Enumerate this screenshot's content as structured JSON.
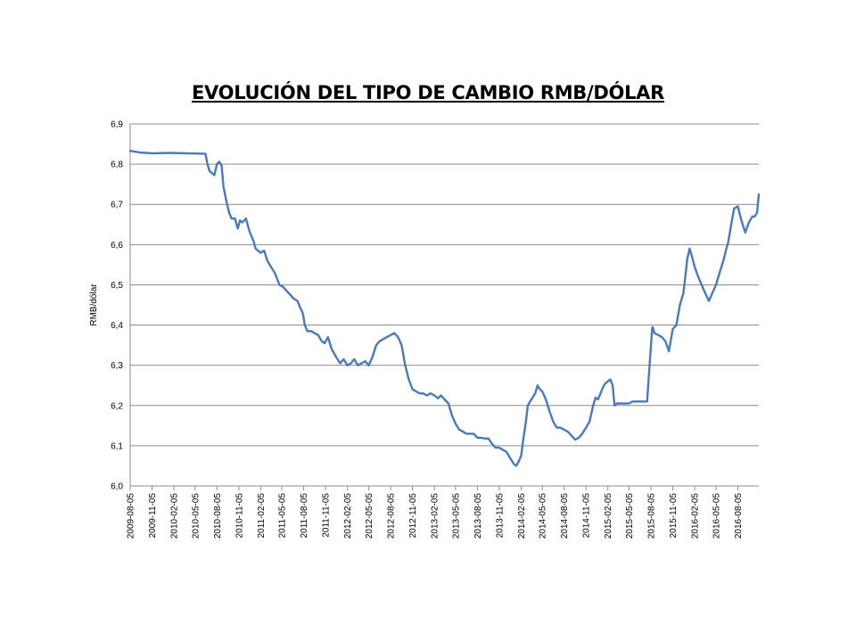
{
  "chart_data": {
    "type": "line",
    "title": "EVOLUCIÓN DEL TIPO DE CAMBIO RMB/DÓLAR",
    "xlabel": "",
    "ylabel": "RMB/dólar",
    "ylim": [
      6.0,
      6.9
    ],
    "yticks": [
      "6,0",
      "6,1",
      "6,2",
      "6,3",
      "6,4",
      "6,5",
      "6,6",
      "6,7",
      "6,8",
      "6,9"
    ],
    "xticks": [
      "2009-08-05",
      "2009-11-05",
      "2010-02-05",
      "2010-05-05",
      "2010-08-05",
      "2010-11-05",
      "2011-02-05",
      "2011-05-05",
      "2011-08-05",
      "2011-11-05",
      "2012-02-05",
      "2012-05-05",
      "2012-08-05",
      "2012-11-05",
      "2013-02-05",
      "2013-05-05",
      "2013-08-05",
      "2013-11-05",
      "2014-02-05",
      "2014-05-05",
      "2014-08-05",
      "2014-11-05",
      "2015-02-05",
      "2015-05-05",
      "2015-08-05",
      "2015-11-05",
      "2016-02-05",
      "2016-05-05",
      "2016-08-05"
    ],
    "grid": true,
    "legend": "none",
    "color": "#4a7ab8",
    "series": [
      {
        "x": [
          "2009-08-05",
          "2009-09-15",
          "2009-11-05",
          "2010-01-15",
          "2010-04-01",
          "2010-06-18",
          "2010-06-25",
          "2010-07-05",
          "2010-07-20",
          "2010-07-25",
          "2010-08-05",
          "2010-08-15",
          "2010-08-25",
          "2010-09-01",
          "2010-09-15",
          "2010-09-25",
          "2010-10-05",
          "2010-10-20",
          "2010-11-01",
          "2010-11-10",
          "2010-11-20",
          "2010-12-05",
          "2010-12-20",
          "2011-01-05",
          "2011-01-15",
          "2011-01-25",
          "2011-02-05",
          "2011-02-20",
          "2011-03-05",
          "2011-03-20",
          "2011-04-05",
          "2011-04-25",
          "2011-05-10",
          "2011-05-25",
          "2011-06-10",
          "2011-06-25",
          "2011-07-10",
          "2011-07-20",
          "2011-08-01",
          "2011-08-10",
          "2011-08-20",
          "2011-09-05",
          "2011-09-20",
          "2011-10-05",
          "2011-10-20",
          "2011-11-01",
          "2011-11-15",
          "2011-12-01",
          "2011-12-20",
          "2012-01-05",
          "2012-01-20",
          "2012-02-05",
          "2012-02-20",
          "2012-03-05",
          "2012-03-20",
          "2012-04-05",
          "2012-04-20",
          "2012-05-05",
          "2012-05-20",
          "2012-06-05",
          "2012-06-20",
          "2012-07-05",
          "2012-07-20",
          "2012-08-05",
          "2012-08-20",
          "2012-09-05",
          "2012-09-20",
          "2012-10-05",
          "2012-10-20",
          "2012-11-05",
          "2012-11-20",
          "2012-12-05",
          "2012-12-20",
          "2013-01-05",
          "2013-01-20",
          "2013-02-05",
          "2013-02-20",
          "2013-03-05",
          "2013-03-20",
          "2013-04-05",
          "2013-04-20",
          "2013-05-05",
          "2013-05-20",
          "2013-06-05",
          "2013-06-20",
          "2013-07-05",
          "2013-07-20",
          "2013-08-05",
          "2013-08-20",
          "2013-09-05",
          "2013-09-20",
          "2013-10-05",
          "2013-10-20",
          "2013-11-05",
          "2013-11-20",
          "2013-12-05",
          "2013-12-20",
          "2014-01-05",
          "2014-01-15",
          "2014-01-25",
          "2014-02-05",
          "2014-02-15",
          "2014-02-25",
          "2014-03-05",
          "2014-03-15",
          "2014-03-25",
          "2014-04-05",
          "2014-04-15",
          "2014-04-25",
          "2014-05-05",
          "2014-05-20",
          "2014-06-05",
          "2014-06-20",
          "2014-07-05",
          "2014-07-20",
          "2014-08-05",
          "2014-08-20",
          "2014-09-05",
          "2014-09-20",
          "2014-10-05",
          "2014-10-20",
          "2014-11-05",
          "2014-11-20",
          "2014-12-05",
          "2014-12-15",
          "2014-12-25",
          "2015-01-05",
          "2015-01-15",
          "2015-01-25",
          "2015-02-05",
          "2015-02-15",
          "2015-02-25",
          "2015-03-05",
          "2015-03-15",
          "2015-03-25",
          "2015-04-05",
          "2015-04-20",
          "2015-05-05",
          "2015-05-20",
          "2015-06-05",
          "2015-06-20",
          "2015-07-05",
          "2015-07-20",
          "2015-08-10",
          "2015-08-12",
          "2015-08-20",
          "2015-09-05",
          "2015-09-20",
          "2015-10-05",
          "2015-10-20",
          "2015-11-05",
          "2015-11-20",
          "2015-12-05",
          "2015-12-20",
          "2016-01-05",
          "2016-01-15",
          "2016-01-25",
          "2016-02-05",
          "2016-02-20",
          "2016-03-05",
          "2016-03-20",
          "2016-04-05",
          "2016-04-20",
          "2016-05-05",
          "2016-05-20",
          "2016-06-05",
          "2016-06-15",
          "2016-06-25",
          "2016-07-05",
          "2016-07-20",
          "2016-08-05",
          "2016-08-20",
          "2016-09-05",
          "2016-09-20",
          "2016-10-05",
          "2016-10-15",
          "2016-10-25",
          "2016-11-01"
        ],
        "y": [
          6.833,
          6.829,
          6.827,
          6.828,
          6.827,
          6.826,
          6.802,
          6.783,
          6.775,
          6.773,
          6.8,
          6.806,
          6.796,
          6.745,
          6.705,
          6.68,
          6.665,
          6.665,
          6.64,
          6.66,
          6.655,
          6.665,
          6.633,
          6.61,
          6.59,
          6.585,
          6.58,
          6.585,
          6.56,
          6.545,
          6.53,
          6.5,
          6.495,
          6.485,
          6.475,
          6.465,
          6.46,
          6.445,
          6.43,
          6.4,
          6.385,
          6.385,
          6.38,
          6.375,
          6.36,
          6.355,
          6.37,
          6.34,
          6.32,
          6.305,
          6.315,
          6.3,
          6.305,
          6.315,
          6.3,
          6.305,
          6.31,
          6.3,
          6.32,
          6.35,
          6.36,
          6.365,
          6.37,
          6.375,
          6.38,
          6.37,
          6.35,
          6.3,
          6.265,
          6.24,
          6.235,
          6.23,
          6.23,
          6.225,
          6.23,
          6.225,
          6.218,
          6.225,
          6.215,
          6.205,
          6.175,
          6.155,
          6.14,
          6.135,
          6.13,
          6.13,
          6.13,
          6.12,
          6.12,
          6.118,
          6.118,
          6.105,
          6.095,
          6.095,
          6.09,
          6.085,
          6.07,
          6.055,
          6.05,
          6.06,
          6.075,
          6.12,
          6.16,
          6.2,
          6.21,
          6.22,
          6.23,
          6.25,
          6.24,
          6.235,
          6.215,
          6.185,
          6.16,
          6.145,
          6.145,
          6.14,
          6.135,
          6.125,
          6.115,
          6.12,
          6.13,
          6.145,
          6.16,
          6.2,
          6.22,
          6.215,
          6.23,
          6.245,
          6.255,
          6.26,
          6.265,
          6.25,
          6.2,
          6.205,
          6.205,
          6.205,
          6.205,
          6.205,
          6.21,
          6.21,
          6.21,
          6.21,
          6.21,
          6.39,
          6.395,
          6.38,
          6.375,
          6.37,
          6.36,
          6.335,
          6.39,
          6.4,
          6.45,
          6.48,
          6.565,
          6.59,
          6.57,
          6.545,
          6.52,
          6.5,
          6.48,
          6.46,
          6.48,
          6.5,
          6.53,
          6.56,
          6.585,
          6.605,
          6.64,
          6.69,
          6.695,
          6.66,
          6.63,
          6.655,
          6.67,
          6.67,
          6.68,
          6.725
        ]
      }
    ]
  }
}
